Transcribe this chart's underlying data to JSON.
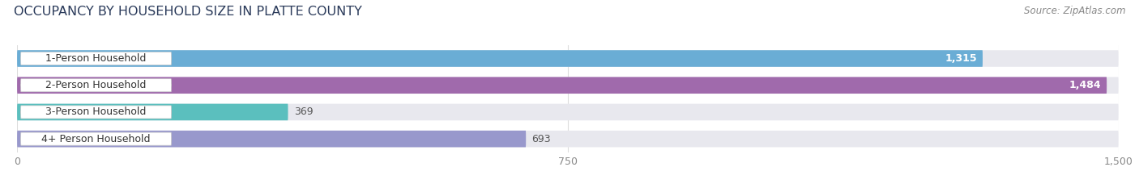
{
  "title": "OCCUPANCY BY HOUSEHOLD SIZE IN PLATTE COUNTY",
  "source": "Source: ZipAtlas.com",
  "categories": [
    "1-Person Household",
    "2-Person Household",
    "3-Person Household",
    "4+ Person Household"
  ],
  "values": [
    1315,
    1484,
    369,
    693
  ],
  "bar_colors": [
    "#6aadd5",
    "#a06aac",
    "#5bbfbe",
    "#9898cc"
  ],
  "xlim_data": [
    0,
    1500
  ],
  "xticks": [
    0,
    750,
    1500
  ],
  "xtick_labels": [
    "0",
    "750",
    "1,500"
  ],
  "value_labels": [
    "1,315",
    "1,484",
    "369",
    "693"
  ],
  "title_fontsize": 11.5,
  "source_fontsize": 8.5,
  "tick_fontsize": 9,
  "bar_label_fontsize": 9,
  "category_fontsize": 9,
  "fig_bg_color": "#ffffff",
  "bar_bg_color": "#e8e8ee",
  "pill_bg_color": "#ffffff",
  "label_inside_color": "#ffffff",
  "label_outside_color": "#555555",
  "grid_color": "#dddddd",
  "tick_color": "#888888"
}
